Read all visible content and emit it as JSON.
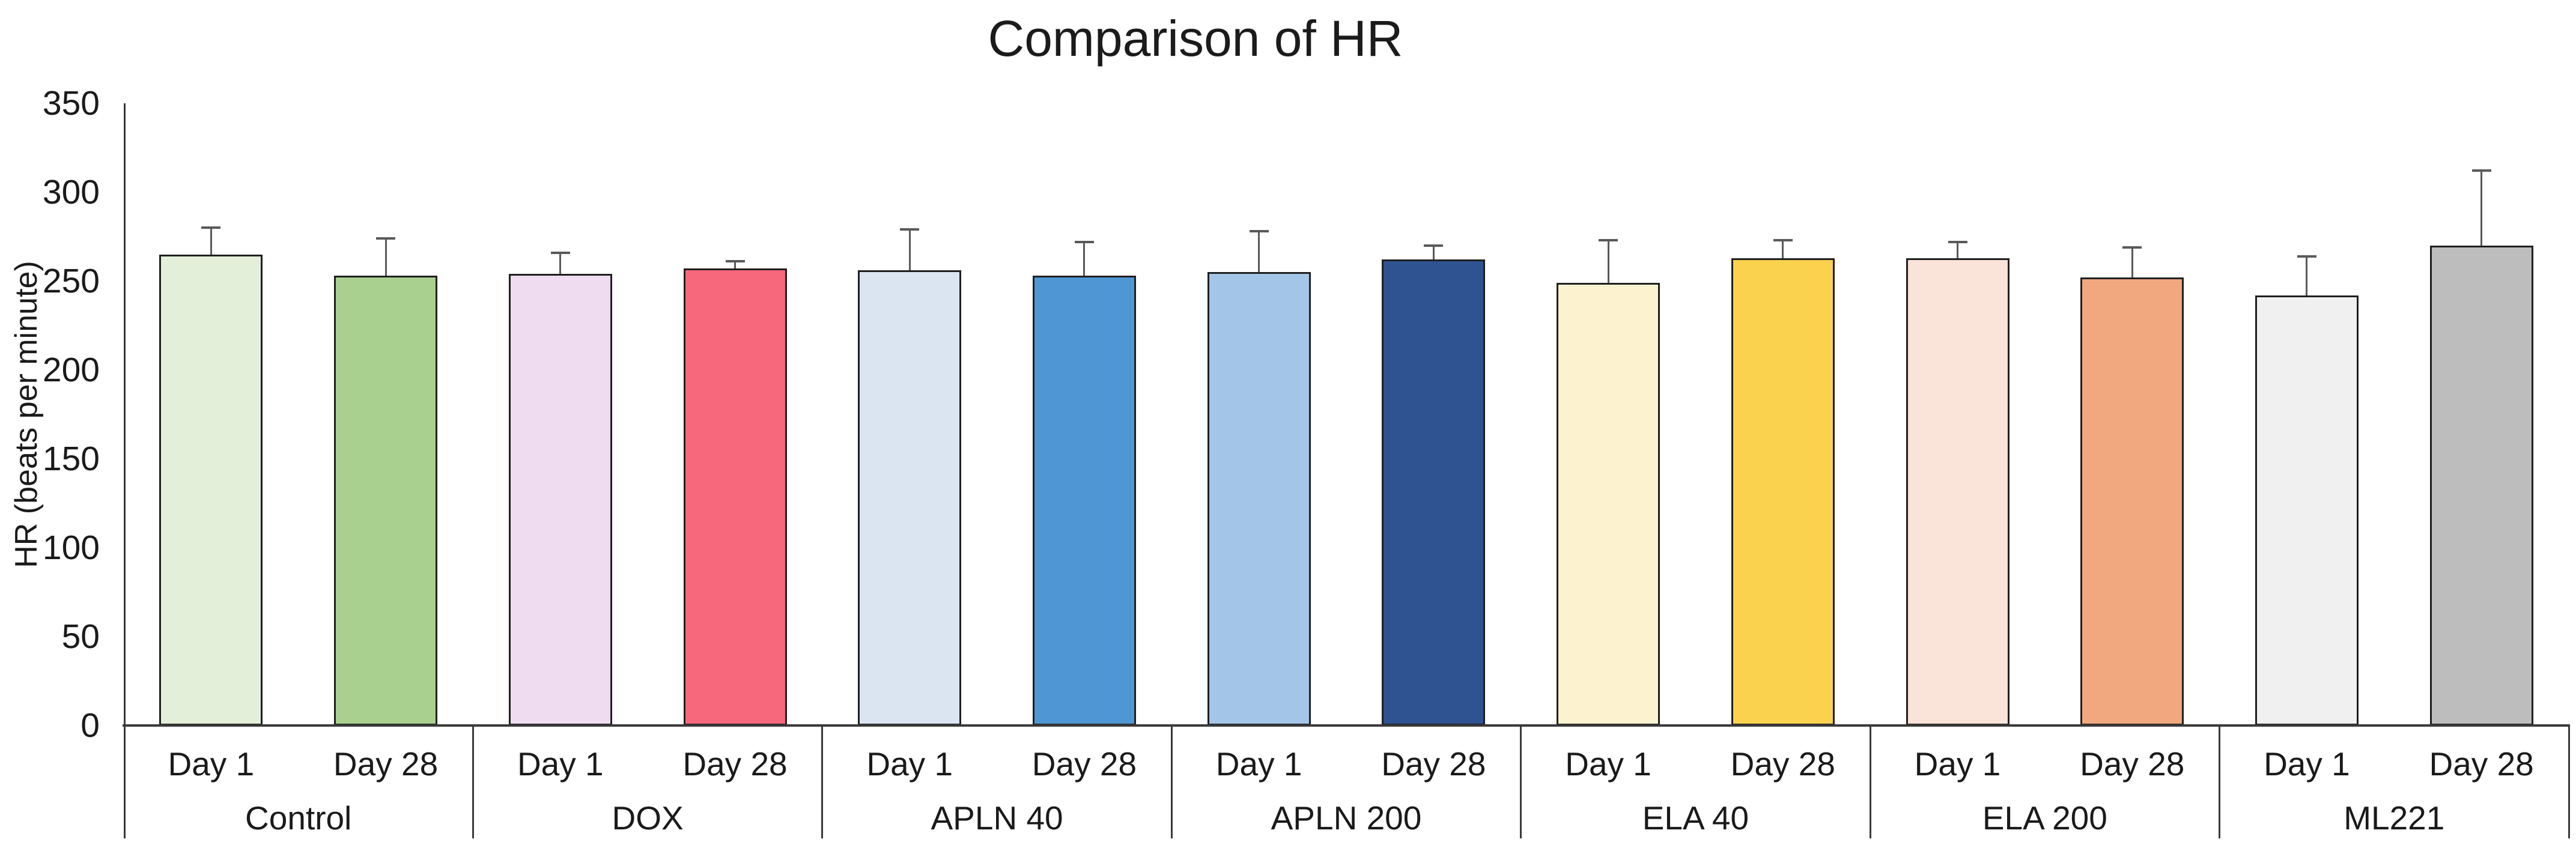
{
  "chart_data": {
    "type": "bar",
    "title": "Comparison of HR",
    "ylabel": "HR (beats per minute)",
    "xlabel": "",
    "ylim": [
      0,
      350
    ],
    "ytick_interval": 50,
    "yticks": [
      350,
      300,
      250,
      200,
      150,
      100,
      50,
      0
    ],
    "grid": false,
    "legend_position": "none",
    "error_bars": "plus_direction_with_caps",
    "groups": [
      {
        "label": "Control",
        "bars": [
          {
            "label": "Day 1",
            "value": 265,
            "error_top": 280,
            "color": "#E3EFD9"
          },
          {
            "label": "Day 28",
            "value": 253,
            "error_top": 274,
            "color": "#A9D08E"
          }
        ]
      },
      {
        "label": "DOX",
        "bars": [
          {
            "label": "Day 1",
            "value": 254,
            "error_top": 266,
            "color": "#EFDCF1"
          },
          {
            "label": "Day 28",
            "value": 257,
            "error_top": 261,
            "color": "#F8687C"
          }
        ]
      },
      {
        "label": "APLN 40",
        "bars": [
          {
            "label": "Day 1",
            "value": 256,
            "error_top": 279,
            "color": "#DBE5F1"
          },
          {
            "label": "Day 28",
            "value": 253,
            "error_top": 272,
            "color": "#4F97D4"
          }
        ]
      },
      {
        "label": "APLN 200",
        "bars": [
          {
            "label": "Day 1",
            "value": 255,
            "error_top": 278,
            "color": "#A3C6E8"
          },
          {
            "label": "Day 28",
            "value": 262,
            "error_top": 270,
            "color": "#2F5291"
          }
        ]
      },
      {
        "label": "ELA 40",
        "bars": [
          {
            "label": "Day 1",
            "value": 249,
            "error_top": 273,
            "color": "#FDF2D0"
          },
          {
            "label": "Day 28",
            "value": 263,
            "error_top": 273,
            "color": "#FBD24E"
          }
        ]
      },
      {
        "label": "ELA 200",
        "bars": [
          {
            "label": "Day 1",
            "value": 263,
            "error_top": 272,
            "color": "#FAE3D8"
          },
          {
            "label": "Day 28",
            "value": 252,
            "error_top": 269,
            "color": "#F2A87F"
          }
        ]
      },
      {
        "label": "ML221",
        "bars": [
          {
            "label": "Day 1",
            "value": 242,
            "error_top": 264,
            "color": "#F0F0F0"
          },
          {
            "label": "Day 28",
            "value": 270,
            "error_top": 312,
            "color": "#BDBDBD"
          }
        ]
      }
    ],
    "styles": {
      "bar_border_color": "#1F1F1F",
      "axis_color": "#3A3A3A",
      "error_bar_color": "#595959",
      "text_color": "#1A1A1A",
      "background": "#FFFFFF"
    }
  }
}
